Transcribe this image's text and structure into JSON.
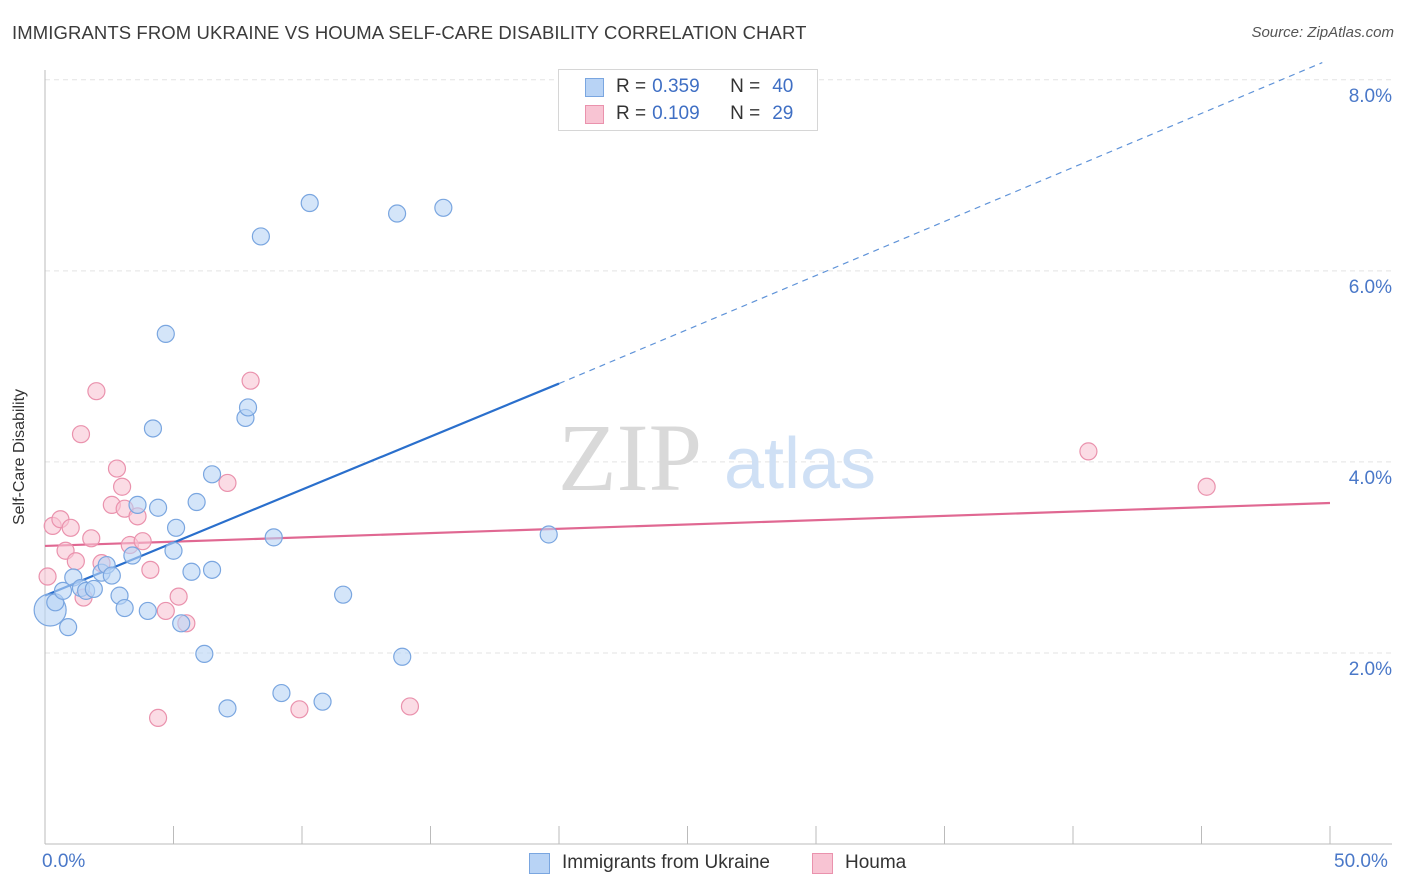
{
  "header": {
    "title": "IMMIGRANTS FROM UKRAINE VS HOUMA SELF-CARE DISABILITY CORRELATION CHART",
    "source": "Source: ZipAtlas.com"
  },
  "watermark": {
    "zip": "ZIP",
    "atlas": "atlas"
  },
  "legend": {
    "rows": [
      {
        "r_label": "R = ",
        "r_value": "0.359",
        "n_label": "N = ",
        "n_value": "40"
      },
      {
        "r_label": "R = ",
        "r_value": "0.109",
        "n_label": "N = ",
        "n_value": "29"
      }
    ]
  },
  "colors": {
    "ukraine_fill": "#b8d3f5",
    "ukraine_stroke": "#7aa6e0",
    "ukraine_line": "#2a6fcc",
    "houma_fill": "#f8c4d3",
    "houma_stroke": "#ea92ad",
    "houma_line": "#e06892",
    "grid": "#e3e3e3",
    "axis_tick_text": "#4a78c8"
  },
  "chart_data": {
    "type": "scatter",
    "title": "IMMIGRANTS FROM UKRAINE VS HOUMA SELF-CARE DISABILITY CORRELATION CHART",
    "xlabel": "",
    "ylabel": "Self-Care Disability",
    "xlim": [
      0,
      50
    ],
    "ylim": [
      0,
      8.3
    ],
    "x_tick_labels": [
      "0.0%",
      "50.0%"
    ],
    "y_ticks": [
      2,
      4,
      6,
      8
    ],
    "y_tick_labels": [
      "2.0%",
      "4.0%",
      "6.0%",
      "8.0%"
    ],
    "grid": true,
    "legend_position": "bottom",
    "series": [
      {
        "name": "Immigrants from Ukraine",
        "r": 0.359,
        "n": 40,
        "trend": {
          "x0": 0,
          "y0": 2.6,
          "x1": 20,
          "y1": 4.82,
          "dashed_to_x": 49.7,
          "dashed_to_y": 8.18
        },
        "points": [
          {
            "x": 0.2,
            "y": 2.45,
            "big": true
          },
          {
            "x": 0.4,
            "y": 2.53
          },
          {
            "x": 0.7,
            "y": 2.65
          },
          {
            "x": 0.9,
            "y": 2.27
          },
          {
            "x": 1.1,
            "y": 2.79
          },
          {
            "x": 1.4,
            "y": 2.68
          },
          {
            "x": 1.6,
            "y": 2.65
          },
          {
            "x": 1.9,
            "y": 2.67
          },
          {
            "x": 2.2,
            "y": 2.84
          },
          {
            "x": 2.4,
            "y": 2.92
          },
          {
            "x": 2.6,
            "y": 2.81
          },
          {
            "x": 2.9,
            "y": 2.6
          },
          {
            "x": 3.1,
            "y": 2.47
          },
          {
            "x": 3.4,
            "y": 3.02
          },
          {
            "x": 3.6,
            "y": 3.55
          },
          {
            "x": 4.0,
            "y": 2.44
          },
          {
            "x": 4.2,
            "y": 4.35
          },
          {
            "x": 4.4,
            "y": 3.52
          },
          {
            "x": 4.7,
            "y": 5.34
          },
          {
            "x": 5.0,
            "y": 3.07
          },
          {
            "x": 5.1,
            "y": 3.31
          },
          {
            "x": 5.3,
            "y": 2.31
          },
          {
            "x": 5.7,
            "y": 2.85
          },
          {
            "x": 5.9,
            "y": 3.58
          },
          {
            "x": 6.2,
            "y": 1.99
          },
          {
            "x": 6.5,
            "y": 3.87
          },
          {
            "x": 6.5,
            "y": 2.87
          },
          {
            "x": 7.1,
            "y": 1.42
          },
          {
            "x": 7.8,
            "y": 4.46
          },
          {
            "x": 7.9,
            "y": 4.57
          },
          {
            "x": 8.4,
            "y": 6.36
          },
          {
            "x": 8.9,
            "y": 3.21
          },
          {
            "x": 9.2,
            "y": 1.58
          },
          {
            "x": 10.3,
            "y": 6.71
          },
          {
            "x": 10.8,
            "y": 1.49
          },
          {
            "x": 11.6,
            "y": 2.61
          },
          {
            "x": 13.7,
            "y": 6.6
          },
          {
            "x": 13.9,
            "y": 1.96
          },
          {
            "x": 15.5,
            "y": 6.66
          },
          {
            "x": 19.6,
            "y": 3.24
          }
        ]
      },
      {
        "name": "Houma",
        "r": 0.109,
        "n": 29,
        "trend": {
          "x0": 0,
          "y0": 3.12,
          "x1": 50,
          "y1": 3.57
        },
        "points": [
          {
            "x": 0.1,
            "y": 2.8
          },
          {
            "x": 0.3,
            "y": 3.33
          },
          {
            "x": 0.6,
            "y": 3.4
          },
          {
            "x": 0.8,
            "y": 3.07
          },
          {
            "x": 1.0,
            "y": 3.31
          },
          {
            "x": 1.2,
            "y": 2.96
          },
          {
            "x": 1.5,
            "y": 2.58
          },
          {
            "x": 1.8,
            "y": 3.2
          },
          {
            "x": 2.0,
            "y": 4.74
          },
          {
            "x": 2.2,
            "y": 2.94
          },
          {
            "x": 2.6,
            "y": 3.55
          },
          {
            "x": 2.8,
            "y": 3.93
          },
          {
            "x": 3.0,
            "y": 3.74
          },
          {
            "x": 3.1,
            "y": 3.51
          },
          {
            "x": 3.3,
            "y": 3.13
          },
          {
            "x": 3.6,
            "y": 3.43
          },
          {
            "x": 3.8,
            "y": 3.17
          },
          {
            "x": 4.1,
            "y": 2.87
          },
          {
            "x": 4.4,
            "y": 1.32
          },
          {
            "x": 4.7,
            "y": 2.44
          },
          {
            "x": 5.2,
            "y": 2.59
          },
          {
            "x": 5.5,
            "y": 2.31
          },
          {
            "x": 1.4,
            "y": 4.29
          },
          {
            "x": 7.1,
            "y": 3.78
          },
          {
            "x": 8.0,
            "y": 4.85
          },
          {
            "x": 9.9,
            "y": 1.41
          },
          {
            "x": 14.2,
            "y": 1.44
          },
          {
            "x": 40.6,
            "y": 4.11
          },
          {
            "x": 45.2,
            "y": 3.74
          }
        ]
      }
    ]
  }
}
